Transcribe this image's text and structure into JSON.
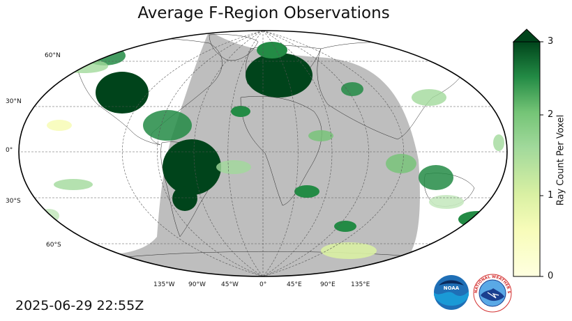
{
  "title": "Average F-Region Observations",
  "lat_labels": [
    "60°N",
    "30°N",
    "0°",
    "30°S",
    "60°S"
  ],
  "lon_labels": [
    "135°W",
    "90°W",
    "45°W",
    "0°",
    "45°E",
    "90°E",
    "135°E"
  ],
  "colorbar": {
    "label": "Ray Count Per Voxel",
    "ticks": [
      "0",
      "1",
      "2",
      "3"
    ],
    "min": 0,
    "max": 3,
    "extend": "max",
    "colors": {
      "low": "#ffffe0",
      "mid_low": "#d8eea0",
      "mid": "#74c476",
      "high": "#238b45",
      "max": "#00441b"
    }
  },
  "night_shade_color": "#bebebe",
  "timestamp": "2025-06-29 22:55Z",
  "logos": {
    "noaa": "NOAA",
    "nws": "NATIONAL WEATHER SERVICE"
  }
}
